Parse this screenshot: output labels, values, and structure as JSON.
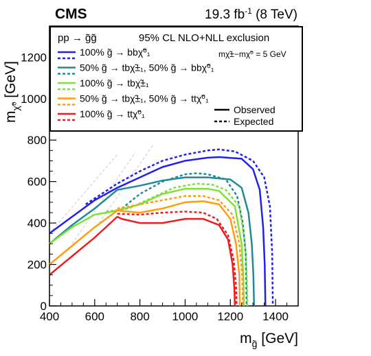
{
  "header": {
    "experiment": "CMS",
    "lumi_main": "19.3 fb",
    "lumi_sup": "-1",
    "lumi_energy": " (8 TeV)"
  },
  "legend": {
    "process": "pp → g̃g̃",
    "exclusion": "95% CL NLO+NLL exclusion",
    "mass_note": "mχ̃±−mχ̃⁰ = 5 GeV",
    "entries": [
      {
        "label": "100% g̃ → bbχ̃⁰₁",
        "color": "#1f1ff0"
      },
      {
        "label": "50% g̃ → tbχ̃±₁, 50% g̃ → bbχ̃⁰₁",
        "color": "#1e8a99"
      },
      {
        "label": "100% g̃ → tbχ̃±₁",
        "color": "#7fe03a"
      },
      {
        "label": "50% g̃ → tbχ̃±₁, 50% g̃ → ttχ̃⁰₁",
        "color": "#ff9c10"
      },
      {
        "label": "100% g̃ → ttχ̃⁰₁",
        "color": "#ee1c1c"
      }
    ],
    "observed_label": "Observed",
    "expected_label": "Expected"
  },
  "chart_data": {
    "type": "line",
    "title": "",
    "xlabel": "m_g̃ [GeV]",
    "ylabel": "m_χ̃⁰ [GeV]",
    "xlim": [
      400,
      1500
    ],
    "ylim": [
      0,
      1350
    ],
    "xticks": [
      400,
      600,
      800,
      1000,
      1200,
      1400
    ],
    "yticks": [
      0,
      200,
      400,
      600,
      800,
      1000,
      1200
    ],
    "series": [
      {
        "name": "100% g̃ → bbχ̃⁰₁ Observed",
        "color": "#1f1ff0",
        "style": "solid",
        "points": [
          [
            400,
            350
          ],
          [
            500,
            430
          ],
          [
            600,
            510
          ],
          [
            700,
            570
          ],
          [
            800,
            620
          ],
          [
            900,
            670
          ],
          [
            1000,
            700
          ],
          [
            1100,
            715
          ],
          [
            1150,
            718
          ],
          [
            1250,
            710
          ],
          [
            1300,
            660
          ],
          [
            1330,
            560
          ],
          [
            1345,
            380
          ],
          [
            1352,
            200
          ],
          [
            1355,
            0
          ]
        ]
      },
      {
        "name": "100% g̃ → bbχ̃⁰₁ Expected",
        "color": "#1f1ff0",
        "style": "dashed",
        "points": [
          [
            560,
            490
          ],
          [
            700,
            590
          ],
          [
            800,
            650
          ],
          [
            900,
            700
          ],
          [
            1000,
            730
          ],
          [
            1100,
            750
          ],
          [
            1150,
            755
          ],
          [
            1220,
            745
          ],
          [
            1300,
            700
          ],
          [
            1350,
            620
          ],
          [
            1375,
            480
          ],
          [
            1385,
            250
          ],
          [
            1388,
            0
          ]
        ]
      },
      {
        "name": "50% g̃ → tbχ̃±₁, 50% g̃ → bbχ̃⁰₁ Observed",
        "color": "#1e8a99",
        "style": "solid",
        "points": [
          [
            400,
            300
          ],
          [
            500,
            390
          ],
          [
            600,
            470
          ],
          [
            700,
            560
          ],
          [
            800,
            580
          ],
          [
            900,
            605
          ],
          [
            1000,
            620
          ],
          [
            1100,
            620
          ],
          [
            1200,
            610
          ],
          [
            1250,
            570
          ],
          [
            1280,
            450
          ],
          [
            1295,
            300
          ],
          [
            1302,
            150
          ],
          [
            1305,
            0
          ]
        ]
      },
      {
        "name": "50% g̃ → tbχ̃±₁, 50% g̃ → bbχ̃⁰₁ Expected",
        "color": "#1e8a99",
        "style": "dashed",
        "points": [
          [
            720,
            470
          ],
          [
            800,
            540
          ],
          [
            900,
            600
          ],
          [
            1000,
            635
          ],
          [
            1050,
            640
          ],
          [
            1100,
            635
          ],
          [
            1180,
            610
          ],
          [
            1230,
            530
          ],
          [
            1255,
            400
          ],
          [
            1268,
            250
          ],
          [
            1272,
            0
          ]
        ]
      },
      {
        "name": "100% g̃ → tbχ̃±₁ Observed",
        "color": "#7fe03a",
        "style": "solid",
        "points": [
          [
            400,
            300
          ],
          [
            500,
            380
          ],
          [
            600,
            440
          ],
          [
            700,
            460
          ],
          [
            800,
            490
          ],
          [
            900,
            540
          ],
          [
            1000,
            565
          ],
          [
            1100,
            565
          ],
          [
            1150,
            555
          ],
          [
            1220,
            480
          ],
          [
            1250,
            300
          ],
          [
            1258,
            120
          ],
          [
            1260,
            0
          ]
        ]
      },
      {
        "name": "100% g̃ → tbχ̃±₁ Expected",
        "color": "#7fe03a",
        "style": "dashed",
        "points": [
          [
            650,
            455
          ],
          [
            750,
            470
          ],
          [
            850,
            520
          ],
          [
            950,
            570
          ],
          [
            1050,
            590
          ],
          [
            1120,
            585
          ],
          [
            1180,
            560
          ],
          [
            1240,
            480
          ],
          [
            1265,
            300
          ],
          [
            1273,
            130
          ],
          [
            1275,
            0
          ]
        ]
      },
      {
        "name": "50% g̃ → tbχ̃±₁, 50% g̃ → ttχ̃⁰₁ Observed",
        "color": "#ff9c10",
        "style": "solid",
        "points": [
          [
            400,
            200
          ],
          [
            500,
            290
          ],
          [
            600,
            380
          ],
          [
            700,
            460
          ],
          [
            800,
            450
          ],
          [
            900,
            470
          ],
          [
            1000,
            500
          ],
          [
            1080,
            505
          ],
          [
            1150,
            490
          ],
          [
            1200,
            420
          ],
          [
            1225,
            300
          ],
          [
            1240,
            150
          ],
          [
            1242,
            0
          ]
        ]
      },
      {
        "name": "50% g̃ → tbχ̃±₁, 50% g̃ → ttχ̃⁰₁ Expected",
        "color": "#ff9c10",
        "style": "dashed",
        "points": [
          [
            700,
            470
          ],
          [
            800,
            490
          ],
          [
            900,
            510
          ],
          [
            1000,
            530
          ],
          [
            1080,
            530
          ],
          [
            1150,
            510
          ],
          [
            1210,
            440
          ],
          [
            1240,
            300
          ],
          [
            1252,
            150
          ],
          [
            1255,
            0
          ]
        ]
      },
      {
        "name": "100% g̃ → ttχ̃⁰₁ Observed",
        "color": "#ee1c1c",
        "style": "solid",
        "points": [
          [
            400,
            150
          ],
          [
            500,
            240
          ],
          [
            600,
            330
          ],
          [
            700,
            430
          ],
          [
            720,
            420
          ],
          [
            800,
            400
          ],
          [
            900,
            400
          ],
          [
            1000,
            420
          ],
          [
            1080,
            420
          ],
          [
            1150,
            390
          ],
          [
            1190,
            320
          ],
          [
            1210,
            200
          ],
          [
            1218,
            80
          ],
          [
            1220,
            0
          ]
        ]
      },
      {
        "name": "100% g̃ → ttχ̃⁰₁ Expected",
        "color": "#ee1c1c",
        "style": "dashed",
        "points": [
          [
            700,
            445
          ],
          [
            800,
            440
          ],
          [
            900,
            450
          ],
          [
            1000,
            455
          ],
          [
            1080,
            450
          ],
          [
            1140,
            420
          ],
          [
            1190,
            340
          ],
          [
            1215,
            220
          ],
          [
            1225,
            100
          ],
          [
            1228,
            0
          ]
        ]
      }
    ],
    "diagonals": [
      {
        "x0": 400,
        "y0": 350,
        "x1": 700,
        "y1": 730
      },
      {
        "x0": 500,
        "y0": 300,
        "x1": 780,
        "y1": 740
      },
      {
        "x0": 620,
        "y0": 400,
        "x1": 860,
        "y1": 780
      }
    ]
  }
}
